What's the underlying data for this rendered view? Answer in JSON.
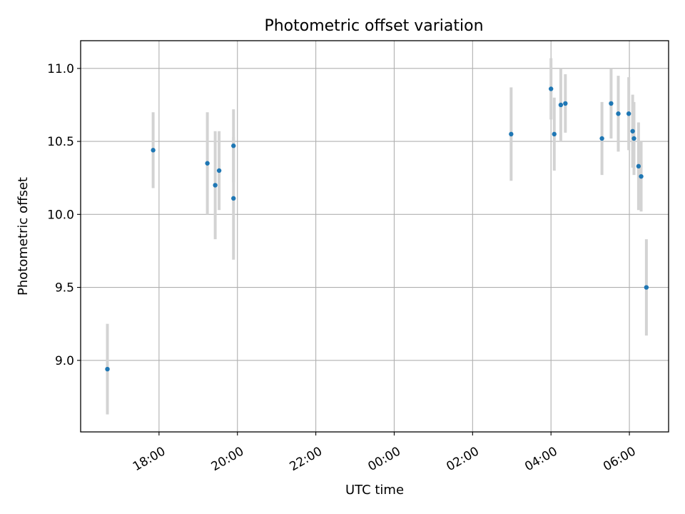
{
  "chart_data": {
    "type": "scatter",
    "title": "Photometric offset variation",
    "xlabel": "UTC time",
    "ylabel": "Photometric offset",
    "x_axis_type": "datetime",
    "x_range": [
      "2000-01-01T16:00",
      "2000-01-02T07:00"
    ],
    "ylim": [
      8.51,
      11.19
    ],
    "grid": true,
    "x_ticks": [
      {
        "t": "2000-01-01T18:00",
        "label": "18:00"
      },
      {
        "t": "2000-01-01T20:00",
        "label": "20:00"
      },
      {
        "t": "2000-01-01T22:00",
        "label": "22:00"
      },
      {
        "t": "2000-01-02T00:00",
        "label": "00:00"
      },
      {
        "t": "2000-01-02T02:00",
        "label": "02:00"
      },
      {
        "t": "2000-01-02T04:00",
        "label": "04:00"
      },
      {
        "t": "2000-01-02T06:00",
        "label": "06:00"
      }
    ],
    "y_ticks": [
      {
        "v": 9.0,
        "label": "9.0"
      },
      {
        "v": 9.5,
        "label": "9.5"
      },
      {
        "v": 10.0,
        "label": "10.0"
      },
      {
        "v": 10.5,
        "label": "10.5"
      },
      {
        "v": 11.0,
        "label": "11.0"
      }
    ],
    "marker_color": "#1f77b4",
    "errorbar_color": "#d3d3d3",
    "points": [
      {
        "t": "2000-01-01T16:41",
        "y": 8.94,
        "err": 0.31
      },
      {
        "t": "2000-01-01T17:51",
        "y": 10.44,
        "err": 0.26
      },
      {
        "t": "2000-01-01T19:14",
        "y": 10.35,
        "err": 0.35
      },
      {
        "t": "2000-01-01T19:26",
        "y": 10.2,
        "err": 0.37
      },
      {
        "t": "2000-01-01T19:32",
        "y": 10.3,
        "err": 0.27
      },
      {
        "t": "2000-01-01T19:54",
        "y": 10.47,
        "err": 0.25
      },
      {
        "t": "2000-01-01T19:54",
        "y": 10.11,
        "err": 0.42
      },
      {
        "t": "2000-01-02T02:59",
        "y": 10.55,
        "err": 0.32
      },
      {
        "t": "2000-01-02T04:00",
        "y": 10.86,
        "err": 0.21
      },
      {
        "t": "2000-01-02T04:05",
        "y": 10.55,
        "err": 0.25
      },
      {
        "t": "2000-01-02T04:15",
        "y": 10.75,
        "err": 0.25
      },
      {
        "t": "2000-01-02T04:22",
        "y": 10.76,
        "err": 0.2
      },
      {
        "t": "2000-01-02T05:18",
        "y": 10.52,
        "err": 0.25
      },
      {
        "t": "2000-01-02T05:32",
        "y": 10.76,
        "err": 0.24
      },
      {
        "t": "2000-01-02T05:43",
        "y": 10.69,
        "err": 0.26
      },
      {
        "t": "2000-01-02T05:59",
        "y": 10.69,
        "err": 0.25
      },
      {
        "t": "2000-01-02T06:05",
        "y": 10.57,
        "err": 0.25
      },
      {
        "t": "2000-01-02T06:07",
        "y": 10.52,
        "err": 0.25
      },
      {
        "t": "2000-01-02T06:14",
        "y": 10.33,
        "err": 0.3
      },
      {
        "t": "2000-01-02T06:18",
        "y": 10.26,
        "err": 0.24
      },
      {
        "t": "2000-01-02T06:26",
        "y": 9.5,
        "err": 0.33
      }
    ]
  }
}
